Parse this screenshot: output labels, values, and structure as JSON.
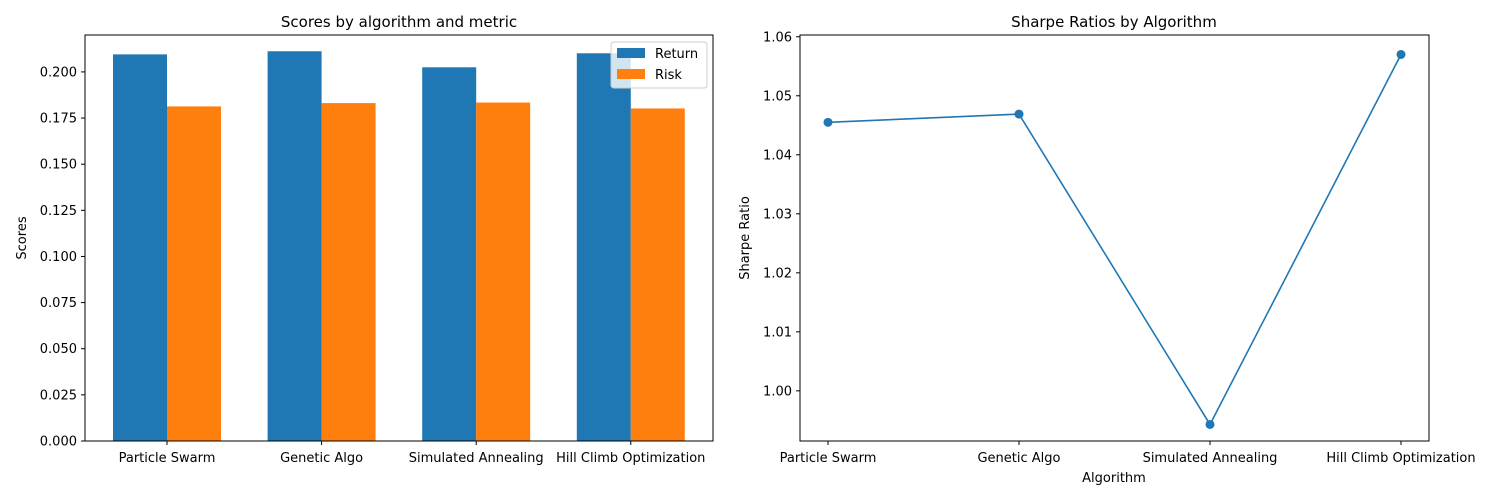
{
  "chart_data": [
    {
      "type": "bar",
      "title": "Scores by algorithm and metric",
      "xlabel": "",
      "ylabel": "Scores",
      "categories": [
        "Particle Swarm",
        "Genetic Algo",
        "Simulated Annealing",
        "Hill Climb Optimization"
      ],
      "series": [
        {
          "name": "Return",
          "values": [
            0.2095,
            0.2112,
            0.2025,
            0.2101
          ],
          "color": "#1f77b4"
        },
        {
          "name": "Risk",
          "values": [
            0.1813,
            0.1831,
            0.1834,
            0.1802
          ],
          "color": "#ff7f0e"
        }
      ],
      "ylim": [
        0,
        0.22
      ],
      "yticks": [
        "0.000",
        "0.025",
        "0.050",
        "0.075",
        "0.100",
        "0.125",
        "0.150",
        "0.175",
        "0.200"
      ],
      "legend_position": "top-right",
      "grid": false
    },
    {
      "type": "line",
      "title": "Sharpe Ratios by Algorithm",
      "xlabel": "Algorithm",
      "ylabel": "Sharpe Ratio",
      "categories": [
        "Particle Swarm",
        "Genetic Algo",
        "Simulated Annealing",
        "Hill Climb Optimization"
      ],
      "series": [
        {
          "name": "",
          "values": [
            1.0455,
            1.0469,
            0.9943,
            1.057
          ],
          "color": "#1f77b4"
        }
      ],
      "ylim": [
        0.9915,
        1.0603
      ],
      "yticks": [
        "1.00",
        "1.01",
        "1.02",
        "1.03",
        "1.04",
        "1.05",
        "1.06"
      ],
      "grid": false
    }
  ]
}
